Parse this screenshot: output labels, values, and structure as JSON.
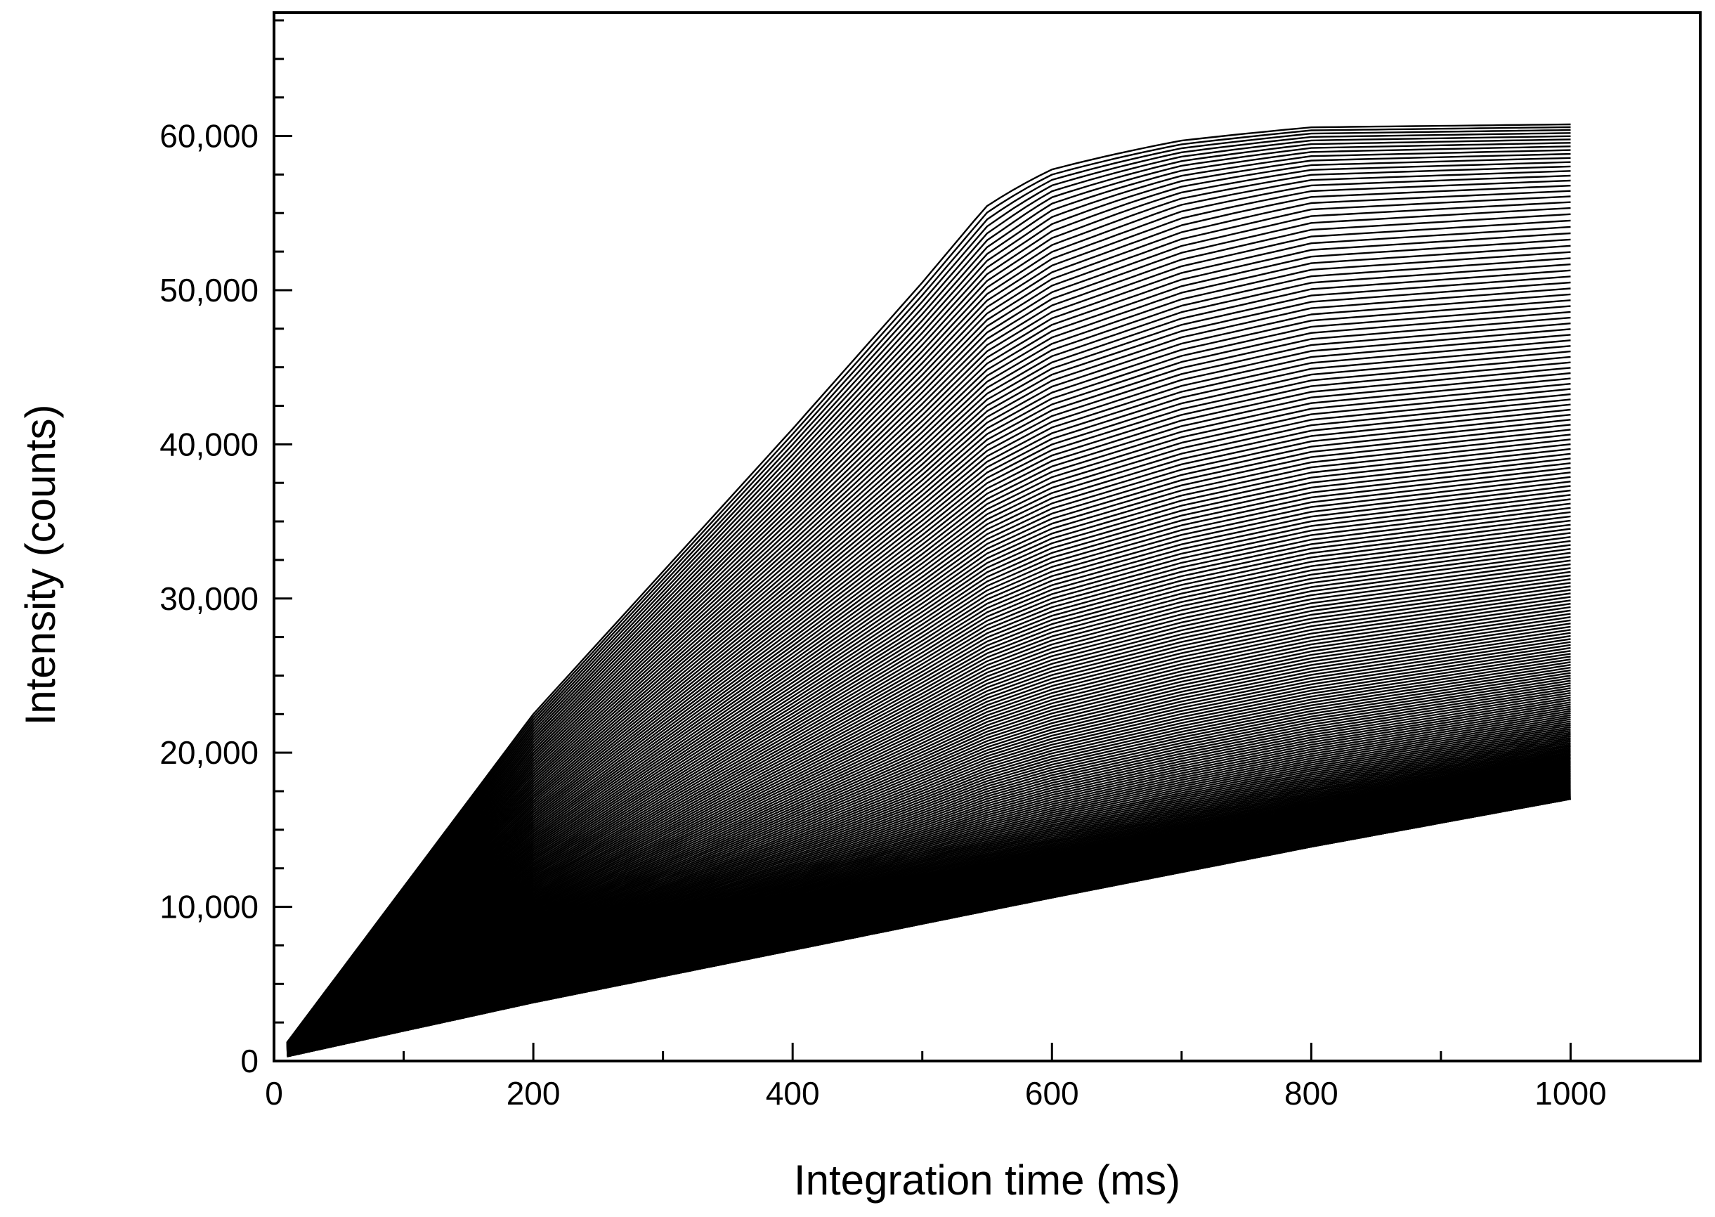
{
  "chart_data": {
    "type": "line",
    "xlabel": "Integration time (ms)",
    "ylabel": "Intensity (counts)",
    "xlim": [
      0,
      1100
    ],
    "ylim": [
      0,
      68000
    ],
    "x_ticks": [
      0,
      200,
      400,
      600,
      800,
      1000
    ],
    "x_tick_labels": [
      "0",
      "200",
      "400",
      "600",
      "800",
      "1000"
    ],
    "y_ticks": [
      0,
      10000,
      20000,
      30000,
      40000,
      50000,
      60000
    ],
    "y_tick_labels": [
      "0",
      "10,000",
      "20,000",
      "30,000",
      "40,000",
      "50,000",
      "60,000"
    ],
    "x_minor_step": 100,
    "y_minor_step": 2500,
    "grid": false,
    "legend": "none",
    "series_style": {
      "color": "#000000"
    },
    "family": {
      "count": 240,
      "x_start": 10,
      "x_end": 1000,
      "min_curve": [
        [
          10,
          300
        ],
        [
          200,
          3800
        ],
        [
          400,
          7200
        ],
        [
          600,
          10600
        ],
        [
          800,
          13900
        ],
        [
          1000,
          17000
        ]
      ],
      "max_curve": [
        [
          10,
          1200
        ],
        [
          200,
          22500
        ],
        [
          400,
          41000
        ],
        [
          500,
          50500
        ],
        [
          550,
          55500
        ],
        [
          600,
          58500
        ],
        [
          700,
          61800
        ],
        [
          800,
          63800
        ],
        [
          1000,
          64300
        ]
      ],
      "saturation": 64300
    }
  }
}
